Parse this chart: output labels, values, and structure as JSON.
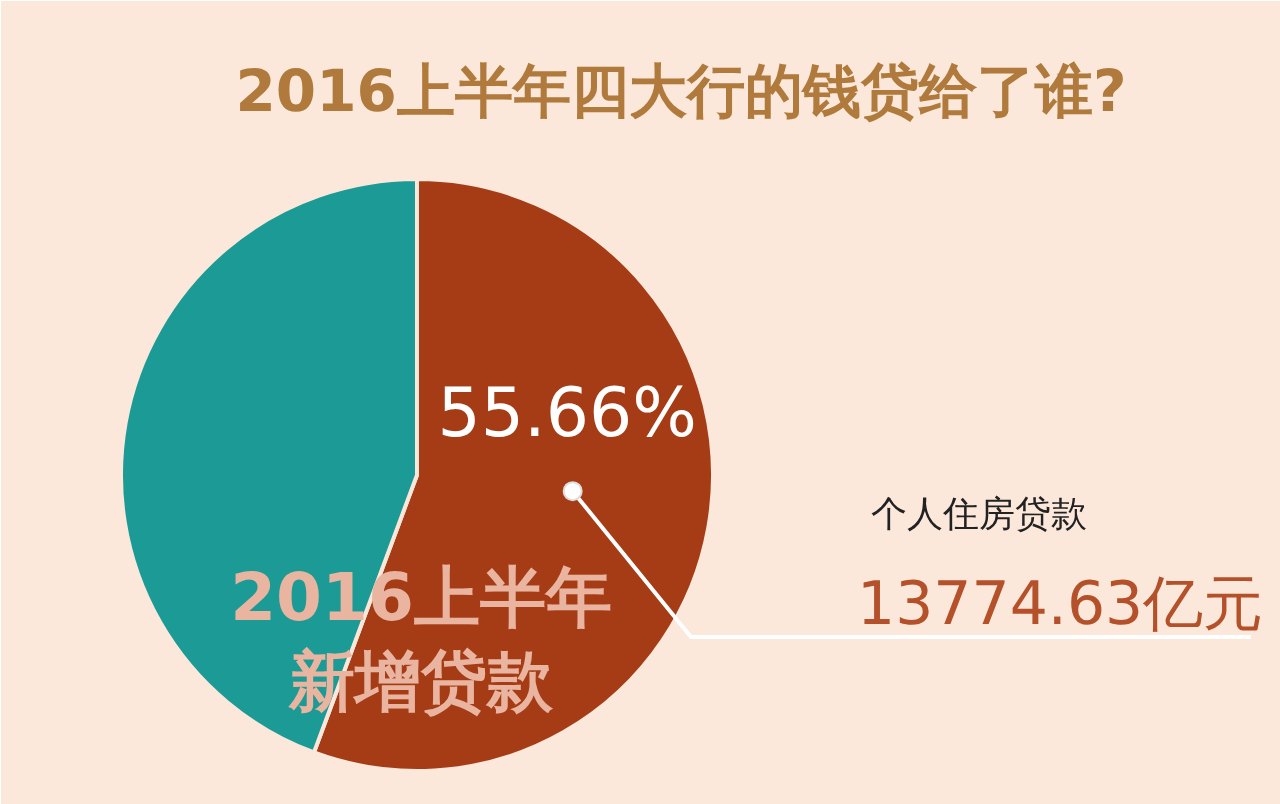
{
  "chart_data": {
    "type": "pie",
    "title": "2016上半年四大行的钱贷给了谁?",
    "categories": [
      "个人住房贷款",
      null
    ],
    "values": [
      55.66,
      44.34
    ],
    "colors": [
      "#a63c16",
      "#1c9a95"
    ],
    "value_labels": [
      "55.66%",
      null
    ],
    "annotations": [
      "2016上半年",
      "新增贷款",
      "13774.63亿元"
    ]
  }
}
